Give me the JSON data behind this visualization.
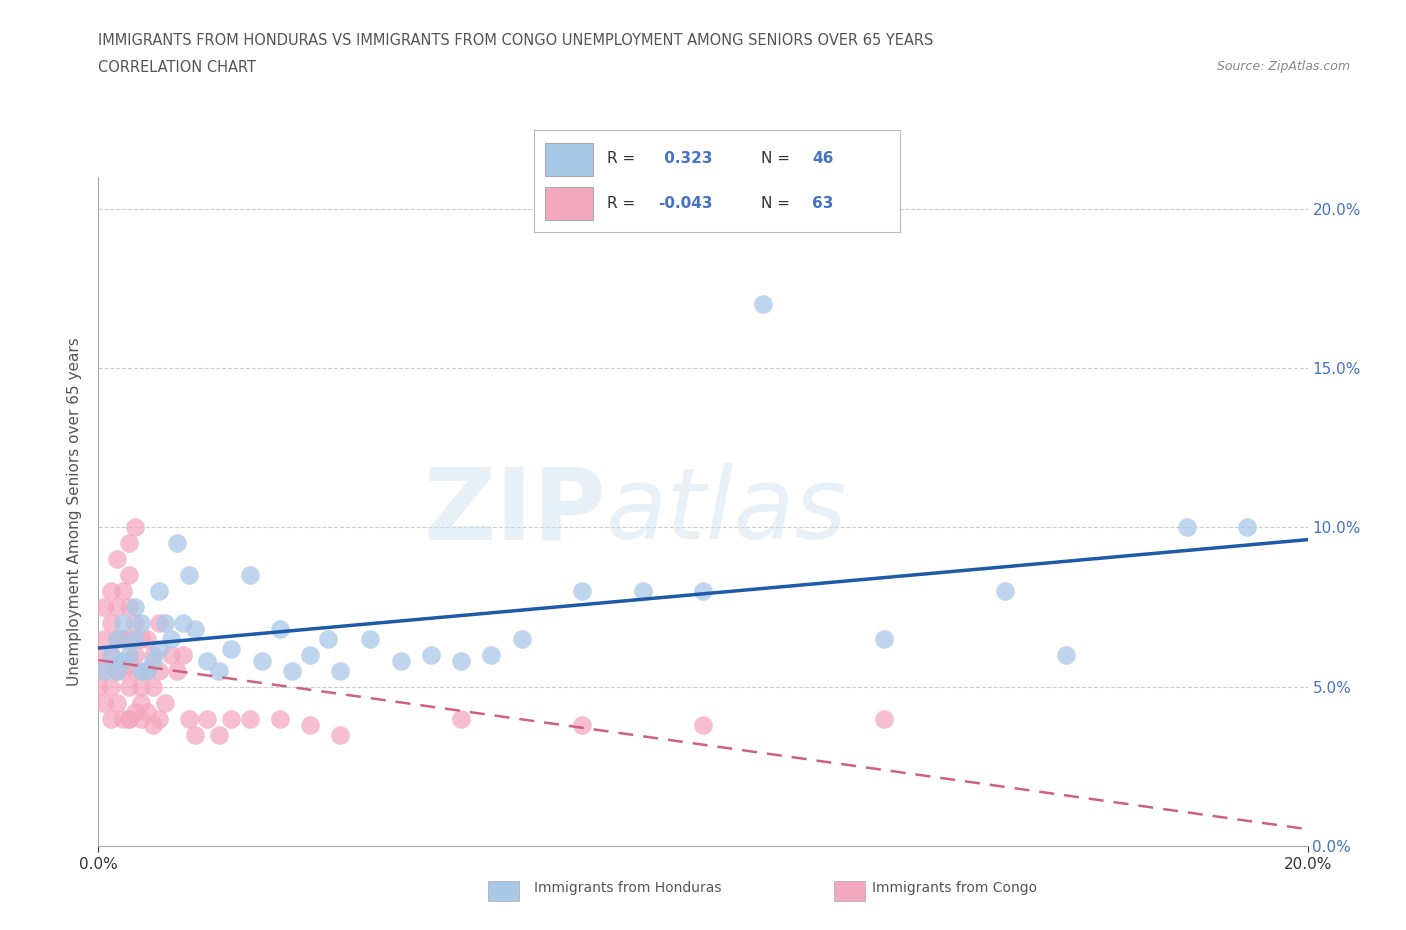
{
  "title_line1": "IMMIGRANTS FROM HONDURAS VS IMMIGRANTS FROM CONGO UNEMPLOYMENT AMONG SENIORS OVER 65 YEARS",
  "title_line2": "CORRELATION CHART",
  "source": "Source: ZipAtlas.com",
  "ylabel": "Unemployment Among Seniors over 65 years",
  "xlim": [
    0.0,
    0.2
  ],
  "ylim": [
    0.0,
    0.21
  ],
  "ytick_values": [
    0.0,
    0.05,
    0.1,
    0.15,
    0.2
  ],
  "xtick_values": [
    0.0,
    0.2
  ],
  "r_honduras": 0.323,
  "n_honduras": 46,
  "r_congo": -0.043,
  "n_congo": 63,
  "honduras_color": "#a8c8e8",
  "congo_color": "#f4a8c0",
  "honduras_line_color": "#1e5aa8",
  "congo_line_color": "#d06080",
  "watermark_zip": "ZIP",
  "watermark_atlas": "atlas",
  "honduras_x": [
    0.001,
    0.002,
    0.003,
    0.003,
    0.004,
    0.004,
    0.005,
    0.006,
    0.006,
    0.007,
    0.007,
    0.008,
    0.009,
    0.01,
    0.01,
    0.011,
    0.012,
    0.013,
    0.014,
    0.015,
    0.016,
    0.018,
    0.02,
    0.022,
    0.025,
    0.027,
    0.03,
    0.032,
    0.035,
    0.038,
    0.04,
    0.045,
    0.05,
    0.055,
    0.06,
    0.065,
    0.07,
    0.08,
    0.09,
    0.1,
    0.11,
    0.13,
    0.15,
    0.16,
    0.18,
    0.19
  ],
  "honduras_y": [
    0.055,
    0.06,
    0.055,
    0.065,
    0.058,
    0.07,
    0.06,
    0.065,
    0.075,
    0.055,
    0.07,
    0.055,
    0.058,
    0.062,
    0.08,
    0.07,
    0.065,
    0.095,
    0.07,
    0.085,
    0.068,
    0.058,
    0.055,
    0.062,
    0.085,
    0.058,
    0.068,
    0.055,
    0.06,
    0.065,
    0.055,
    0.065,
    0.058,
    0.06,
    0.058,
    0.06,
    0.065,
    0.08,
    0.08,
    0.08,
    0.17,
    0.065,
    0.08,
    0.06,
    0.1,
    0.1
  ],
  "congo_x": [
    0.0,
    0.0,
    0.001,
    0.001,
    0.001,
    0.001,
    0.002,
    0.002,
    0.002,
    0.002,
    0.002,
    0.003,
    0.003,
    0.003,
    0.003,
    0.003,
    0.004,
    0.004,
    0.004,
    0.004,
    0.005,
    0.005,
    0.005,
    0.005,
    0.005,
    0.005,
    0.005,
    0.005,
    0.006,
    0.006,
    0.006,
    0.006,
    0.006,
    0.007,
    0.007,
    0.007,
    0.007,
    0.008,
    0.008,
    0.008,
    0.009,
    0.009,
    0.009,
    0.01,
    0.01,
    0.01,
    0.011,
    0.012,
    0.013,
    0.014,
    0.015,
    0.016,
    0.018,
    0.02,
    0.022,
    0.025,
    0.03,
    0.035,
    0.04,
    0.06,
    0.08,
    0.1,
    0.13
  ],
  "congo_y": [
    0.05,
    0.06,
    0.045,
    0.055,
    0.065,
    0.075,
    0.04,
    0.05,
    0.06,
    0.07,
    0.08,
    0.045,
    0.055,
    0.065,
    0.075,
    0.09,
    0.04,
    0.055,
    0.065,
    0.08,
    0.04,
    0.05,
    0.058,
    0.065,
    0.075,
    0.085,
    0.04,
    0.095,
    0.042,
    0.055,
    0.06,
    0.07,
    0.1,
    0.04,
    0.05,
    0.065,
    0.045,
    0.042,
    0.055,
    0.065,
    0.038,
    0.05,
    0.06,
    0.04,
    0.055,
    0.07,
    0.045,
    0.06,
    0.055,
    0.06,
    0.04,
    0.035,
    0.04,
    0.035,
    0.04,
    0.04,
    0.04,
    0.038,
    0.035,
    0.04,
    0.038,
    0.038,
    0.04
  ]
}
